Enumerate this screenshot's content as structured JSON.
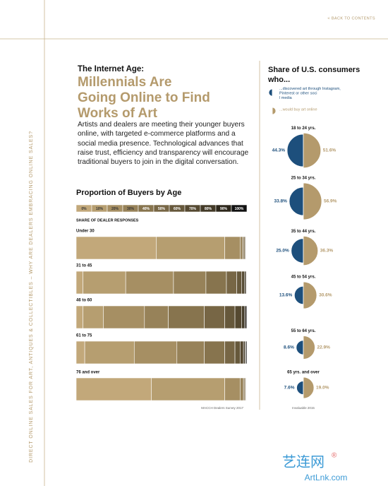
{
  "nav": {
    "back": "< BACK TO CONTENTS"
  },
  "sidebar": "DIRECT ONLINE SALES FOR ART, ANTIQUES & COLLECTIBLES  –  WHY ARE DEALERS EMBRACING ONLINE SALES?",
  "header": {
    "kicker": "The Internet Age:",
    "title_lines": [
      "Millennials Are",
      "Going Online to Find",
      "Works of Art"
    ]
  },
  "body": "Artists and dealers are meeting their younger buyers online, with targeted e-commerce platforms and a social media presence. Technological advances that raise trust, efficiency and transparency will encourage traditional buyers to join in the digital conversation.",
  "watermark": {
    "name": "艺连网",
    "mark": "®",
    "url": "ArtLnk.com"
  },
  "chart_data": [
    {
      "type": "stacked-bar",
      "title": "Proportion of Buyers by Age",
      "subtitle": "SHARE OF DEALER RESPONSES",
      "source": "MACCH Dealers Survey 2017",
      "categories": [
        "Under 30",
        "31 to 45",
        "46 to 60",
        "61 to 75",
        "76 and over"
      ],
      "series": [
        {
          "name": "0%",
          "color": "#c2a87a",
          "values": [
            47,
            4,
            4,
            5,
            44
          ]
        },
        {
          "name": "10%",
          "color": "#b69e70",
          "values": [
            40,
            25,
            12,
            29,
            43
          ]
        },
        {
          "name": "20%",
          "color": "#a68f63",
          "values": [
            9,
            28,
            24,
            25,
            9
          ]
        },
        {
          "name": "30%",
          "color": "#978259",
          "values": [
            1.5,
            19,
            14,
            16,
            2
          ]
        },
        {
          "name": "40%",
          "color": "#87744e",
          "values": [
            0.8,
            12,
            21,
            12,
            0.8
          ]
        },
        {
          "name": "50%",
          "color": "#776645",
          "values": [
            0.6,
            6,
            12,
            6,
            0.5
          ]
        },
        {
          "name": "60%",
          "color": "#66583b",
          "values": [
            0.4,
            3,
            6,
            3,
            0.3
          ]
        },
        {
          "name": "70%",
          "color": "#554931",
          "values": [
            0.3,
            1.5,
            4,
            2,
            0.2
          ]
        },
        {
          "name": "80%",
          "color": "#433a27",
          "values": [
            0.2,
            0.8,
            1.5,
            1,
            0.1
          ]
        },
        {
          "name": "90%",
          "color": "#2d271b",
          "values": [
            0.1,
            0.5,
            1,
            0.5,
            0.05
          ]
        },
        {
          "name": "100%",
          "color": "#111111",
          "values": [
            0.1,
            0.2,
            0.5,
            0.5,
            0.05
          ]
        }
      ]
    },
    {
      "type": "half-pie",
      "title": "Share of U.S. consumers who...",
      "source": "Invaluable 2015",
      "categories": [
        "18 to 24 yrs.",
        "25 to 34 yrs.",
        "35 to 44 yrs.",
        "45 to 54 yrs.",
        "55 to 64 yrs.",
        "65 yrs. and over"
      ],
      "series": [
        {
          "name": "...discovered art through Instagram, Pinterest or other social media",
          "color": "#1d4f7c",
          "values": [
            44.3,
            33.8,
            25.0,
            13.6,
            8.6,
            7.6
          ],
          "value_labels": [
            "44.3%",
            "33.8%",
            "25.0%",
            "13.6%",
            "8.6%",
            "7.6%"
          ]
        },
        {
          "name": "...would buy art online",
          "color": "#b49a6c",
          "values": [
            51.6,
            56.9,
            36.3,
            30.6,
            22.9,
            19.0
          ],
          "value_labels": [
            "51.6%",
            "56.9%",
            "36.3%",
            "30.6%",
            "22.9%",
            "19.0%"
          ]
        }
      ]
    }
  ]
}
